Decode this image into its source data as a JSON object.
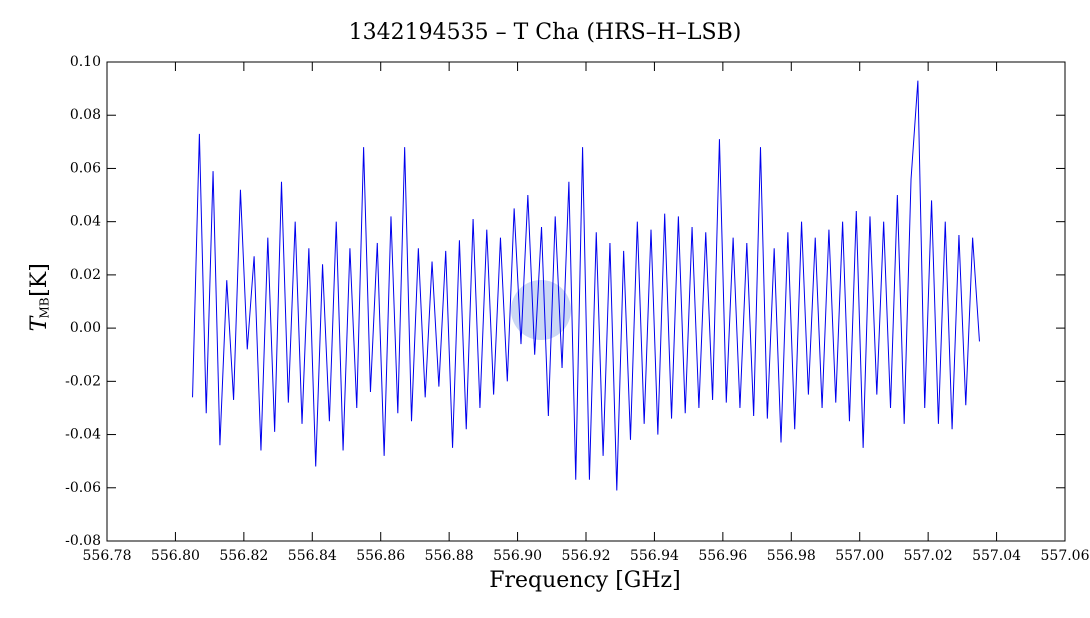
{
  "chart_data": {
    "type": "line",
    "title": "1342194535 – T Cha (HRS–H–LSB)",
    "x_label": "Frequency [GHz]",
    "y_label": {
      "symbol": "T",
      "subscript": "MB",
      "unit": "[K]"
    },
    "xlim": [
      556.78,
      557.06
    ],
    "xticks": [
      556.78,
      {
        "value": 556.8,
        "label": "556.80"
      },
      556.82,
      556.84,
      556.86,
      556.88,
      {
        "value": 556.9,
        "label": "556.90"
      },
      556.92,
      556.94,
      556.96,
      556.98,
      {
        "value": 557.0,
        "label": "557.00"
      },
      557.02,
      557.04,
      557.06
    ],
    "ylim": [
      -0.08,
      0.1
    ],
    "yticks": [
      -0.08,
      -0.06,
      -0.04,
      -0.02,
      {
        "value": 0,
        "label": "0.00"
      },
      0.02,
      0.04,
      0.06,
      0.08,
      {
        "value": 0.1,
        "label": "0.10"
      }
    ],
    "series": [
      {
        "color": "#0000ee",
        "x": [
          556.805,
          556.807,
          556.809,
          556.811,
          556.813,
          556.815,
          556.817,
          556.819,
          556.821,
          556.823,
          556.825,
          556.827,
          556.829,
          556.831,
          556.833,
          556.835,
          556.837,
          556.839,
          556.841,
          556.843,
          556.845,
          556.847,
          556.849,
          556.851,
          556.853,
          556.855,
          556.857,
          556.859,
          556.861,
          556.863,
          556.865,
          556.867,
          556.869,
          556.871,
          556.873,
          556.875,
          556.877,
          556.879,
          556.881,
          556.883,
          556.885,
          556.887,
          556.889,
          556.891,
          556.893,
          556.895,
          556.897,
          556.899,
          556.901,
          556.903,
          556.905,
          556.907,
          556.909,
          556.911,
          556.913,
          556.915,
          556.917,
          556.919,
          556.921,
          556.923,
          556.925,
          556.927,
          556.929,
          556.931,
          556.933,
          556.935,
          556.937,
          556.939,
          556.941,
          556.943,
          556.945,
          556.947,
          556.949,
          556.951,
          556.953,
          556.955,
          556.957,
          556.959,
          556.961,
          556.963,
          556.965,
          556.967,
          556.969,
          556.971,
          556.973,
          556.975,
          556.977,
          556.979,
          556.981,
          556.983,
          556.985,
          556.987,
          556.989,
          556.991,
          556.993,
          556.995,
          556.997,
          556.999,
          557.001,
          557.003,
          557.005,
          557.007,
          557.009,
          557.011,
          557.013,
          557.015,
          557.017,
          557.019,
          557.021,
          557.023,
          557.025,
          557.027,
          557.029,
          557.031,
          557.033,
          557.035
        ],
        "values": [
          -0.026,
          0.073,
          -0.032,
          0.059,
          -0.044,
          0.018,
          -0.027,
          0.052,
          -0.008,
          0.027,
          -0.046,
          0.034,
          -0.039,
          0.055,
          -0.028,
          0.04,
          -0.036,
          0.03,
          -0.052,
          0.024,
          -0.035,
          0.04,
          -0.046,
          0.03,
          -0.03,
          0.068,
          -0.024,
          0.032,
          -0.048,
          0.042,
          -0.032,
          0.068,
          -0.035,
          0.03,
          -0.026,
          0.025,
          -0.022,
          0.029,
          -0.045,
          0.033,
          -0.038,
          0.041,
          -0.03,
          0.037,
          -0.025,
          0.034,
          -0.02,
          0.045,
          -0.006,
          0.05,
          -0.01,
          0.038,
          -0.033,
          0.042,
          -0.015,
          0.055,
          -0.057,
          0.068,
          -0.057,
          0.036,
          -0.048,
          0.032,
          -0.061,
          0.029,
          -0.042,
          0.04,
          -0.036,
          0.037,
          -0.04,
          0.043,
          -0.034,
          0.042,
          -0.032,
          0.038,
          -0.03,
          0.036,
          -0.027,
          0.071,
          -0.028,
          0.034,
          -0.03,
          0.032,
          -0.033,
          0.068,
          -0.034,
          0.03,
          -0.043,
          0.036,
          -0.038,
          0.04,
          -0.025,
          0.034,
          -0.03,
          0.037,
          -0.028,
          0.04,
          -0.035,
          0.044,
          -0.045,
          0.042,
          -0.025,
          0.04,
          -0.03,
          0.05,
          -0.036,
          0.056,
          0.093,
          -0.03,
          0.048,
          -0.036,
          0.04,
          -0.038,
          0.035,
          -0.029,
          0.034,
          -0.005
        ]
      }
    ]
  }
}
